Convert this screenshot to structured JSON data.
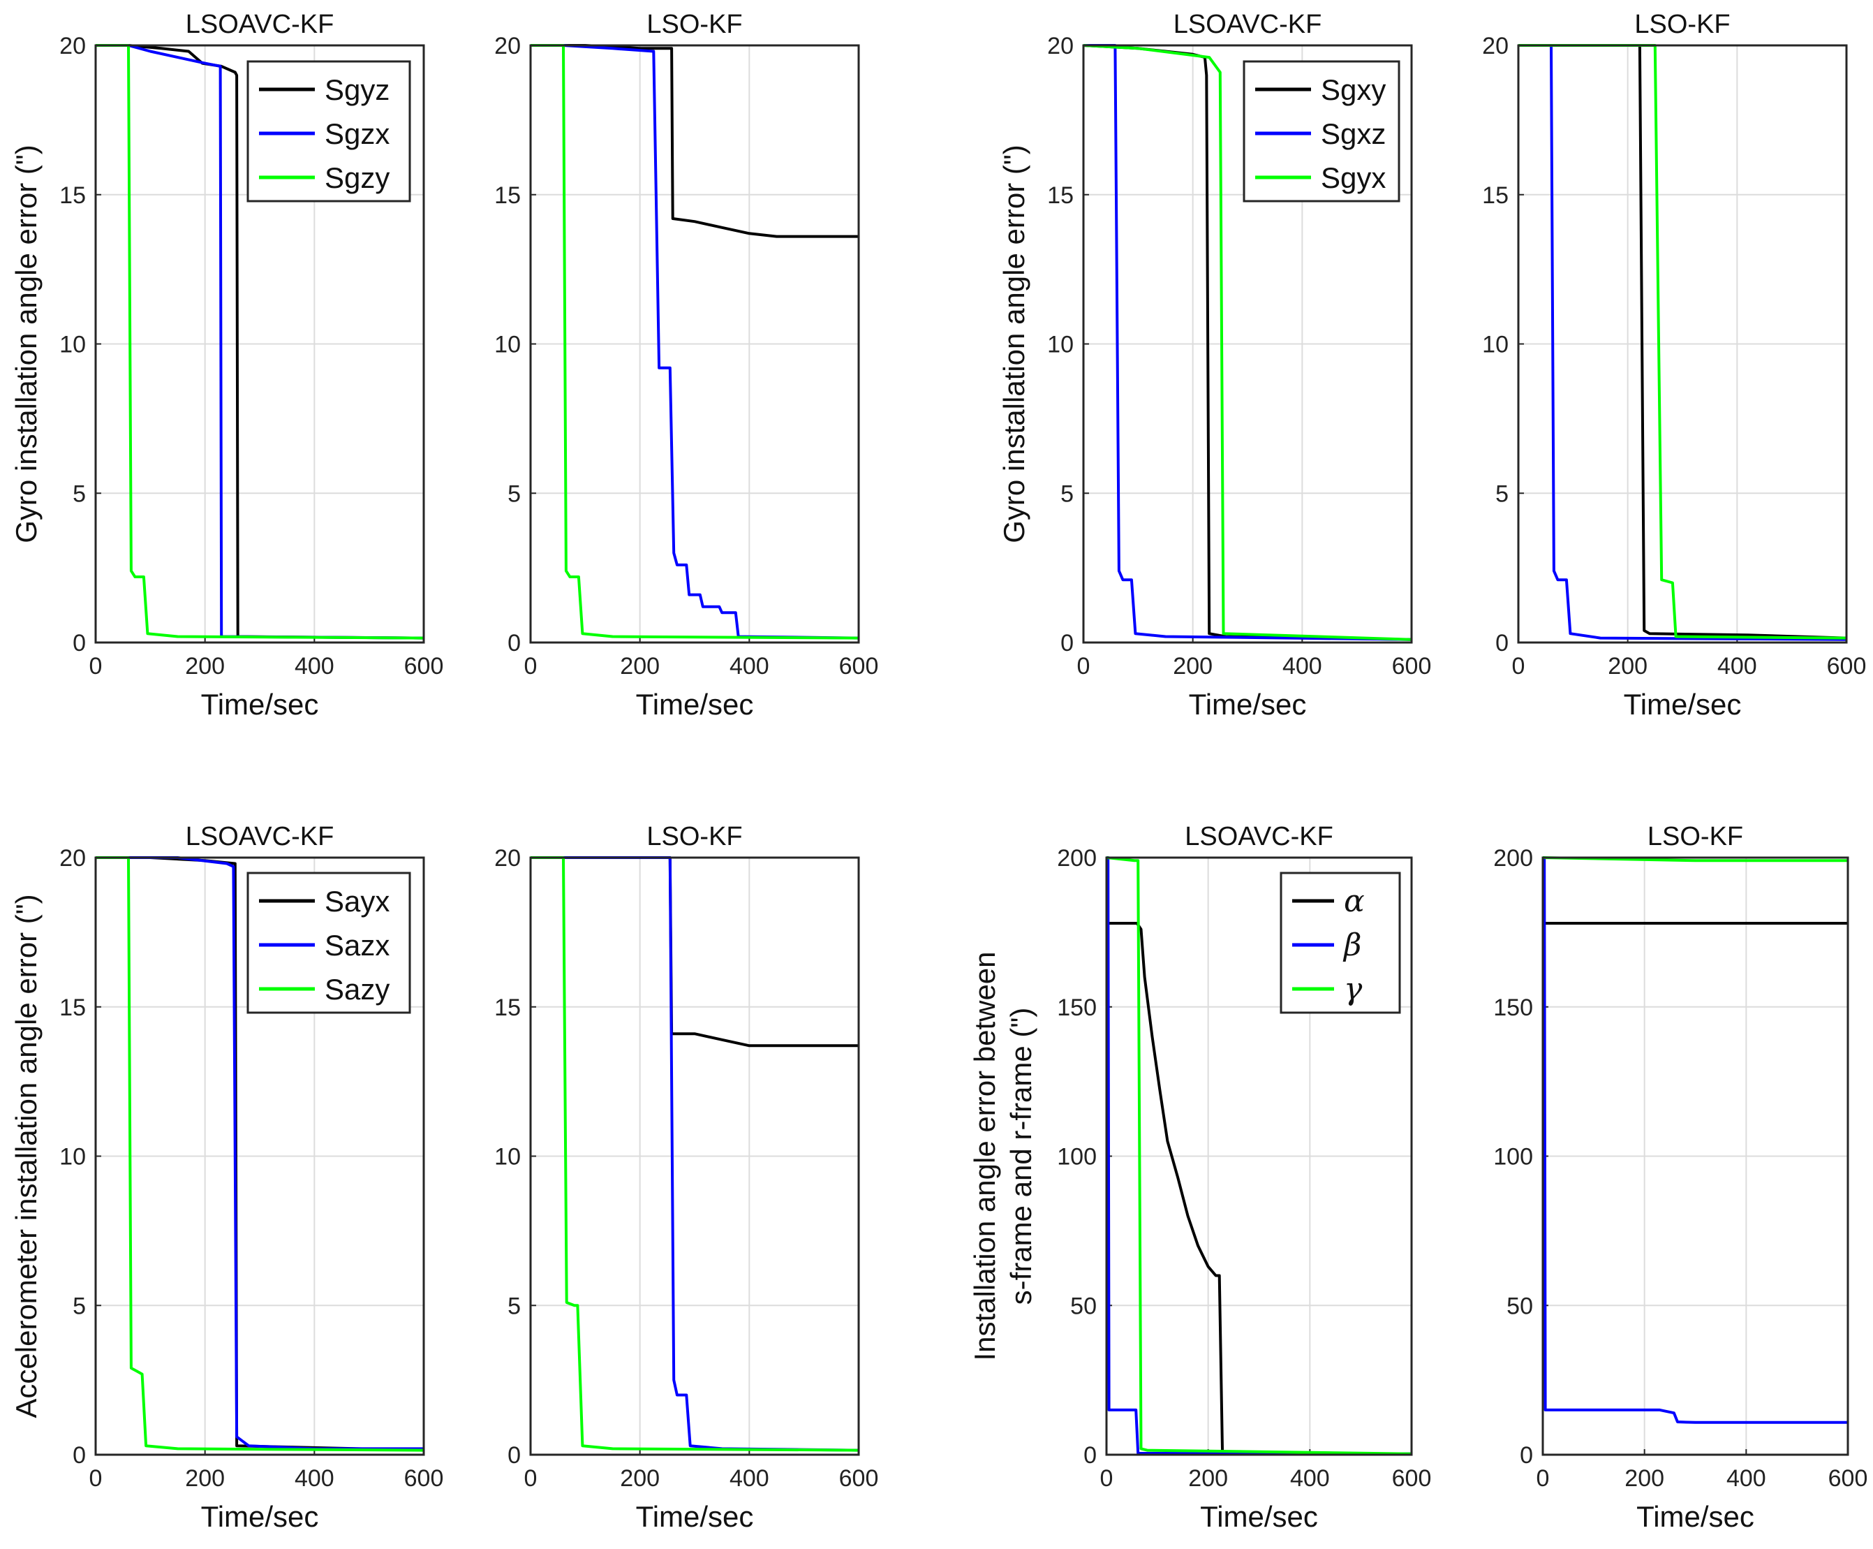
{
  "chart_data": [
    {
      "type": "line",
      "panel": "top-left-1",
      "title": "LSOAVC-KF",
      "xlabel": "Time/sec",
      "ylabel": "Gyro installation angle error (\")",
      "xlim": [
        0,
        600
      ],
      "ylim": [
        0,
        20
      ],
      "xticks": [
        0,
        200,
        400,
        600
      ],
      "yticks": [
        0,
        5,
        10,
        15,
        20
      ],
      "legend": "top-right",
      "series": [
        {
          "name": "Sgyz",
          "color": "#000000",
          "points": [
            [
              0,
              20
            ],
            [
              60,
              20
            ],
            [
              120,
              19.9
            ],
            [
              170,
              19.8
            ],
            [
              195,
              19.4
            ],
            [
              230,
              19.3
            ],
            [
              255,
              19.1
            ],
            [
              258,
              19.0
            ],
            [
              260,
              0.2
            ],
            [
              600,
              0.15
            ]
          ]
        },
        {
          "name": "Sgzx",
          "color": "#0000ff",
          "points": [
            [
              0,
              20
            ],
            [
              60,
              20
            ],
            [
              100,
              19.8
            ],
            [
              150,
              19.6
            ],
            [
              200,
              19.4
            ],
            [
              228,
              19.3
            ],
            [
              230,
              0.2
            ],
            [
              600,
              0.15
            ]
          ]
        },
        {
          "name": "Sgzy",
          "color": "#00ff00",
          "points": [
            [
              0,
              20
            ],
            [
              60,
              20
            ],
            [
              65,
              2.4
            ],
            [
              72,
              2.2
            ],
            [
              88,
              2.2
            ],
            [
              95,
              0.3
            ],
            [
              150,
              0.2
            ],
            [
              600,
              0.15
            ]
          ]
        }
      ]
    },
    {
      "type": "line",
      "panel": "top-left-2",
      "title": "LSO-KF",
      "xlabel": "Time/sec",
      "xlim": [
        0,
        600
      ],
      "ylim": [
        0,
        20
      ],
      "xticks": [
        0,
        200,
        400,
        600
      ],
      "yticks": [
        0,
        5,
        10,
        15,
        20
      ],
      "series": [
        {
          "name": "Sgyz",
          "color": "#000000",
          "points": [
            [
              0,
              20
            ],
            [
              100,
              20
            ],
            [
              200,
              19.9
            ],
            [
              258,
              19.9
            ],
            [
              260,
              14.2
            ],
            [
              300,
              14.1
            ],
            [
              350,
              13.9
            ],
            [
              400,
              13.7
            ],
            [
              450,
              13.6
            ],
            [
              600,
              13.6
            ]
          ]
        },
        {
          "name": "Sgzx",
          "color": "#0000ff",
          "points": [
            [
              0,
              20
            ],
            [
              60,
              20
            ],
            [
              150,
              19.9
            ],
            [
              225,
              19.8
            ],
            [
              235,
              9.2
            ],
            [
              255,
              9.2
            ],
            [
              262,
              3.0
            ],
            [
              268,
              2.6
            ],
            [
              285,
              2.6
            ],
            [
              290,
              1.6
            ],
            [
              310,
              1.6
            ],
            [
              315,
              1.2
            ],
            [
              345,
              1.2
            ],
            [
              350,
              1.0
            ],
            [
              375,
              1.0
            ],
            [
              380,
              0.2
            ],
            [
              600,
              0.15
            ]
          ]
        },
        {
          "name": "Sgzy",
          "color": "#00ff00",
          "points": [
            [
              0,
              20
            ],
            [
              60,
              20
            ],
            [
              65,
              2.4
            ],
            [
              72,
              2.2
            ],
            [
              88,
              2.2
            ],
            [
              95,
              0.3
            ],
            [
              150,
              0.2
            ],
            [
              600,
              0.15
            ]
          ]
        }
      ]
    },
    {
      "type": "line",
      "panel": "top-right-1",
      "title": "LSOAVC-KF",
      "xlabel": "Time/sec",
      "ylabel": "Gyro installation angle error (\")",
      "xlim": [
        0,
        600
      ],
      "ylim": [
        0,
        20
      ],
      "xticks": [
        0,
        200,
        400,
        600
      ],
      "yticks": [
        0,
        5,
        10,
        15,
        20
      ],
      "legend": "top-right",
      "series": [
        {
          "name": "Sgxy",
          "color": "#000000",
          "points": [
            [
              0,
              20
            ],
            [
              100,
              19.9
            ],
            [
              200,
              19.7
            ],
            [
              222,
              19.6
            ],
            [
              225,
              19.0
            ],
            [
              230,
              0.3
            ],
            [
              260,
              0.2
            ],
            [
              600,
              0.1
            ]
          ]
        },
        {
          "name": "Sgxz",
          "color": "#0000ff",
          "points": [
            [
              0,
              20
            ],
            [
              58,
              20
            ],
            [
              65,
              2.4
            ],
            [
              72,
              2.1
            ],
            [
              88,
              2.1
            ],
            [
              95,
              0.3
            ],
            [
              150,
              0.2
            ],
            [
              600,
              0.1
            ]
          ]
        },
        {
          "name": "Sgyx",
          "color": "#00ff00",
          "points": [
            [
              0,
              20
            ],
            [
              100,
              19.9
            ],
            [
              230,
              19.6
            ],
            [
              250,
              19.1
            ],
            [
              256,
              0.3
            ],
            [
              600,
              0.1
            ]
          ]
        }
      ]
    },
    {
      "type": "line",
      "panel": "top-right-2",
      "title": "LSO-KF",
      "xlabel": "Time/sec",
      "xlim": [
        0,
        600
      ],
      "ylim": [
        0,
        20
      ],
      "xticks": [
        0,
        200,
        400,
        600
      ],
      "yticks": [
        0,
        5,
        10,
        15,
        20
      ],
      "series": [
        {
          "name": "Sgxy",
          "color": "#000000",
          "points": [
            [
              0,
              20
            ],
            [
              100,
              20
            ],
            [
              222,
              20
            ],
            [
              230,
              0.4
            ],
            [
              240,
              0.3
            ],
            [
              420,
              0.25
            ],
            [
              600,
              0.15
            ]
          ]
        },
        {
          "name": "Sgxz",
          "color": "#0000ff",
          "points": [
            [
              0,
              20
            ],
            [
              60,
              20
            ],
            [
              65,
              2.4
            ],
            [
              72,
              2.1
            ],
            [
              88,
              2.1
            ],
            [
              95,
              0.3
            ],
            [
              150,
              0.15
            ],
            [
              600,
              0.1
            ]
          ]
        },
        {
          "name": "Sgyx",
          "color": "#00ff00",
          "points": [
            [
              0,
              20
            ],
            [
              100,
              20
            ],
            [
              250,
              20
            ],
            [
              262,
              2.1
            ],
            [
              282,
              2.0
            ],
            [
              288,
              0.2
            ],
            [
              600,
              0.15
            ]
          ]
        }
      ]
    },
    {
      "type": "line",
      "panel": "bottom-left-1",
      "title": "LSOAVC-KF",
      "xlabel": "Time/sec",
      "ylabel": "Accelerometer installation angle error (\")",
      "xlim": [
        0,
        600
      ],
      "ylim": [
        0,
        20
      ],
      "xticks": [
        0,
        200,
        400,
        600
      ],
      "yticks": [
        0,
        5,
        10,
        15,
        20
      ],
      "legend": "top-right",
      "series": [
        {
          "name": "Sayx",
          "color": "#000000",
          "points": [
            [
              0,
              20
            ],
            [
              100,
              20
            ],
            [
              200,
              19.9
            ],
            [
              255,
              19.8
            ],
            [
              258,
              0.3
            ],
            [
              600,
              0.15
            ]
          ]
        },
        {
          "name": "Sazx",
          "color": "#0000ff",
          "points": [
            [
              0,
              20
            ],
            [
              150,
              20
            ],
            [
              240,
              19.8
            ],
            [
              252,
              19.7
            ],
            [
              258,
              0.6
            ],
            [
              280,
              0.3
            ],
            [
              400,
              0.2
            ],
            [
              600,
              0.2
            ]
          ]
        },
        {
          "name": "Sazy",
          "color": "#00ff00",
          "points": [
            [
              0,
              20
            ],
            [
              60,
              20
            ],
            [
              65,
              2.9
            ],
            [
              75,
              2.8
            ],
            [
              85,
              2.7
            ],
            [
              92,
              0.3
            ],
            [
              150,
              0.2
            ],
            [
              600,
              0.15
            ]
          ]
        }
      ]
    },
    {
      "type": "line",
      "panel": "bottom-left-2",
      "title": "LSO-KF",
      "xlabel": "Time/sec",
      "xlim": [
        0,
        600
      ],
      "ylim": [
        0,
        20
      ],
      "xticks": [
        0,
        200,
        400,
        600
      ],
      "yticks": [
        0,
        5,
        10,
        15,
        20
      ],
      "series": [
        {
          "name": "Sayx",
          "color": "#000000",
          "points": [
            [
              0,
              20
            ],
            [
              100,
              20
            ],
            [
              255,
              20
            ],
            [
              258,
              14.1
            ],
            [
              300,
              14.1
            ],
            [
              350,
              13.9
            ],
            [
              400,
              13.7
            ],
            [
              450,
              13.7
            ],
            [
              600,
              13.7
            ]
          ]
        },
        {
          "name": "Sazx",
          "color": "#0000ff",
          "points": [
            [
              0,
              20
            ],
            [
              100,
              20
            ],
            [
              255,
              20
            ],
            [
              262,
              2.5
            ],
            [
              268,
              2.0
            ],
            [
              285,
              2.0
            ],
            [
              292,
              0.3
            ],
            [
              350,
              0.2
            ],
            [
              600,
              0.15
            ]
          ]
        },
        {
          "name": "Sazy",
          "color": "#00ff00",
          "points": [
            [
              0,
              20
            ],
            [
              60,
              20
            ],
            [
              66,
              5.1
            ],
            [
              80,
              5.0
            ],
            [
              86,
              5.0
            ],
            [
              95,
              0.3
            ],
            [
              150,
              0.2
            ],
            [
              600,
              0.15
            ]
          ]
        }
      ]
    },
    {
      "type": "line",
      "panel": "bottom-right-1",
      "title": "LSOAVC-KF",
      "xlabel": "Time/sec",
      "ylabel": [
        "Installation angle error between",
        "s-frame and r-frame (\")"
      ],
      "xlim": [
        0,
        600
      ],
      "ylim": [
        0,
        200
      ],
      "xticks": [
        0,
        200,
        400,
        600
      ],
      "yticks": [
        0,
        50,
        100,
        150,
        200
      ],
      "legend": "top-right",
      "series": [
        {
          "name": "α",
          "color": "#000000",
          "points": [
            [
              0,
              178
            ],
            [
              60,
              178
            ],
            [
              68,
              176
            ],
            [
              75,
              160
            ],
            [
              90,
              140
            ],
            [
              105,
              122
            ],
            [
              120,
              105
            ],
            [
              140,
              93
            ],
            [
              160,
              80
            ],
            [
              180,
              70
            ],
            [
              200,
              63
            ],
            [
              215,
              60
            ],
            [
              222,
              60
            ],
            [
              228,
              0.5
            ],
            [
              600,
              0.3
            ]
          ]
        },
        {
          "name": "β",
          "color": "#0000ff",
          "points": [
            [
              0,
              200
            ],
            [
              3,
              200
            ],
            [
              5,
              15
            ],
            [
              50,
              15
            ],
            [
              58,
              15
            ],
            [
              62,
              0.5
            ],
            [
              600,
              0.3
            ]
          ]
        },
        {
          "name": "γ",
          "color": "#00ff00",
          "points": [
            [
              0,
              200
            ],
            [
              55,
              199
            ],
            [
              62,
              199
            ],
            [
              68,
              2
            ],
            [
              80,
              1.5
            ],
            [
              600,
              0.3
            ]
          ]
        }
      ]
    },
    {
      "type": "line",
      "panel": "bottom-right-2",
      "title": "LSO-KF",
      "xlabel": "Time/sec",
      "xlim": [
        0,
        600
      ],
      "ylim": [
        0,
        200
      ],
      "xticks": [
        0,
        200,
        400,
        600
      ],
      "yticks": [
        0,
        50,
        100,
        150,
        200
      ],
      "series": [
        {
          "name": "α",
          "color": "#000000",
          "points": [
            [
              0,
              178
            ],
            [
              600,
              178
            ]
          ]
        },
        {
          "name": "β",
          "color": "#0000ff",
          "points": [
            [
              0,
              200
            ],
            [
              3,
              200
            ],
            [
              5,
              15
            ],
            [
              230,
              15
            ],
            [
              258,
              14
            ],
            [
              265,
              11
            ],
            [
              300,
              10.8
            ],
            [
              600,
              10.8
            ]
          ]
        },
        {
          "name": "γ",
          "color": "#00ff00",
          "points": [
            [
              0,
              200
            ],
            [
              300,
              199
            ],
            [
              600,
              199
            ]
          ]
        }
      ]
    }
  ]
}
